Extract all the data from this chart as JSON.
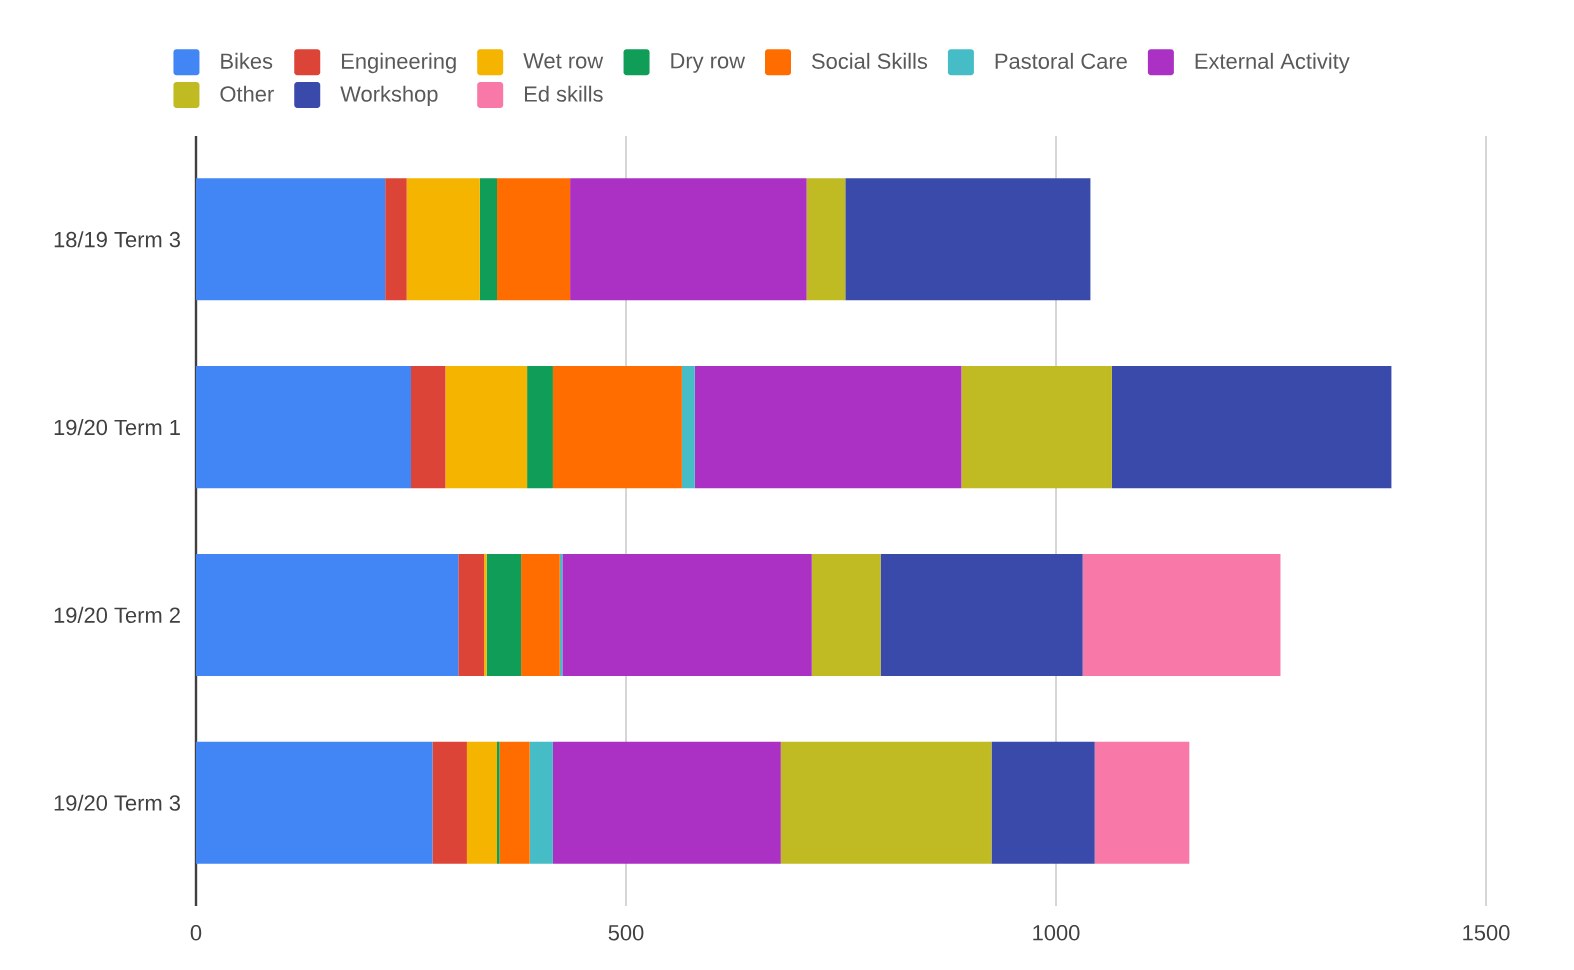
{
  "chart_data": {
    "type": "bar",
    "orientation": "horizontal",
    "stacked": true,
    "categories": [
      "18/19 Term 3",
      "19/20 Term 1",
      "19/20 Term 2",
      "19/20 Term 3"
    ],
    "series": [
      {
        "name": "Bikes",
        "color": "#4285f4",
        "values": [
          220,
          250,
          305,
          275
        ]
      },
      {
        "name": "Engineering",
        "color": "#db4437",
        "values": [
          25,
          40,
          30,
          40
        ]
      },
      {
        "name": "Wet row",
        "color": "#f4b400",
        "values": [
          85,
          95,
          3,
          35
        ]
      },
      {
        "name": "Dry row",
        "color": "#0f9d58",
        "values": [
          20,
          30,
          40,
          3
        ]
      },
      {
        "name": "Social Skills",
        "color": "#ff6d00",
        "values": [
          85,
          150,
          45,
          35
        ]
      },
      {
        "name": "Pastoral Care",
        "color": "#46bdc6",
        "values": [
          0,
          15,
          3,
          27
        ]
      },
      {
        "name": "External Activity",
        "color": "#ab30c4",
        "values": [
          275,
          310,
          290,
          265
        ]
      },
      {
        "name": "Other",
        "color": "#c0bb22",
        "values": [
          45,
          175,
          80,
          245
        ]
      },
      {
        "name": "Workshop",
        "color": "#3a4aab",
        "values": [
          285,
          325,
          235,
          120
        ]
      },
      {
        "name": "Ed skills",
        "color": "#f878a8",
        "values": [
          0,
          0,
          230,
          110
        ]
      }
    ],
    "xlim": [
      0,
      1500
    ],
    "xticks": [
      0,
      500,
      1000,
      1500
    ],
    "grid": "x",
    "legend": "top"
  }
}
